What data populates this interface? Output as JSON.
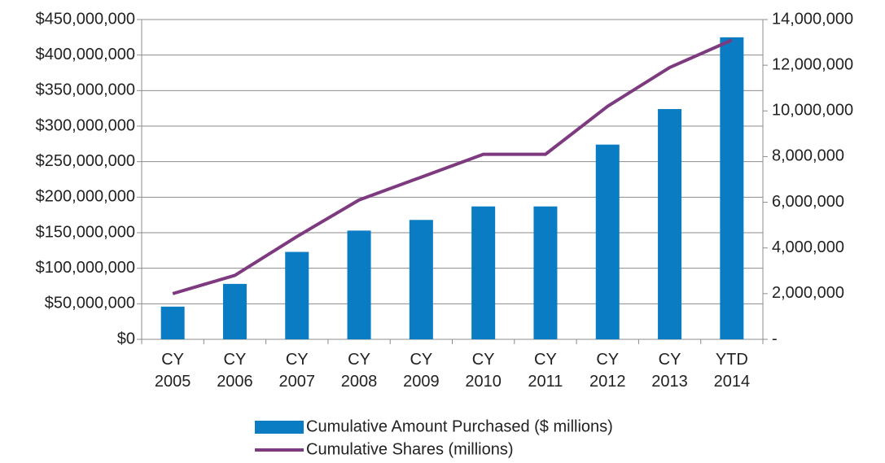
{
  "chart_data": {
    "type": "bar",
    "categories": [
      "CY 2005",
      "CY 2006",
      "CY 2007",
      "CY 2008",
      "CY 2009",
      "CY 2010",
      "CY 2011",
      "CY 2012",
      "CY 2013",
      "YTD 2014"
    ],
    "series": [
      {
        "name": "Cumulative Amount Purchased ($ millions)",
        "type": "bar",
        "color": "#0a7cc3",
        "values": [
          46000000,
          78000000,
          123000000,
          153000000,
          168000000,
          187000000,
          187000000,
          274000000,
          324000000,
          425000000
        ]
      },
      {
        "name": "Cumulative Shares (millions)",
        "type": "line",
        "axis": "y2",
        "color": "#7e3a7f",
        "values": [
          2000000,
          2800000,
          4500000,
          6100000,
          7100000,
          8100000,
          8100000,
          10200000,
          11900000,
          13100000
        ]
      }
    ],
    "ylim": [
      0,
      450000000
    ],
    "yticks": [
      {
        "value": 0,
        "label": "$0"
      },
      {
        "value": 50000000,
        "label": "$50,000,000"
      },
      {
        "value": 100000000,
        "label": "$100,000,000"
      },
      {
        "value": 150000000,
        "label": "$150,000,000"
      },
      {
        "value": 200000000,
        "label": "$200,000,000"
      },
      {
        "value": 250000000,
        "label": "$250,000,000"
      },
      {
        "value": 300000000,
        "label": "$300,000,000"
      },
      {
        "value": 350000000,
        "label": "$350,000,000"
      },
      {
        "value": 400000000,
        "label": "$400,000,000"
      },
      {
        "value": 450000000,
        "label": "$450,000,000"
      }
    ],
    "y2lim": [
      0,
      14000000
    ],
    "y2ticks": [
      {
        "value": 0,
        "label": "-"
      },
      {
        "value": 2000000,
        "label": "2,000,000"
      },
      {
        "value": 4000000,
        "label": "4,000,000"
      },
      {
        "value": 6000000,
        "label": "6,000,000"
      },
      {
        "value": 8000000,
        "label": "8,000,000"
      },
      {
        "value": 10000000,
        "label": "10,000,000"
      },
      {
        "value": 12000000,
        "label": "12,000,000"
      },
      {
        "value": 14000000,
        "label": "14,000,000"
      }
    ],
    "grid": true,
    "legend": "bottom"
  }
}
